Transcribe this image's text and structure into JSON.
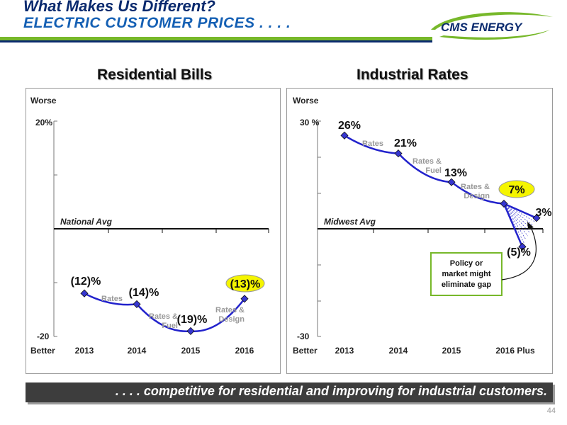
{
  "header": {
    "title": "What Makes Us Different?",
    "subtitle": "ELECTRIC CUSTOMER PRICES . . . .",
    "logo_text": "CMS ENERGY"
  },
  "colors": {
    "line": "#2222cc",
    "highlight": "#f5f500",
    "navy": "#0a2a6e",
    "green": "#77b82a"
  },
  "footer": {
    "text": ". . . . competitive for residential and improving for industrial customers.",
    "page_number": "44"
  },
  "chart_data": [
    {
      "type": "line",
      "title": "Residential Bills",
      "categories": [
        "2013",
        "2014",
        "2015",
        "2016"
      ],
      "series": [
        {
          "values": [
            -12,
            -14,
            -19,
            -13
          ]
        }
      ],
      "value_labels": [
        "(12)%",
        "(14)%",
        "(19)%",
        "(13)%"
      ],
      "highlighted_label_index": 3,
      "segment_labels": [
        [
          "Rates"
        ],
        [
          "Rates &",
          "Fuel"
        ],
        [
          "Rates &",
          "Design"
        ]
      ],
      "ylim": [
        -20,
        20
      ],
      "ytick_labels": [
        "20%",
        "-20"
      ],
      "top_label": "Worse",
      "bottom_label": "Better",
      "reference_line": {
        "label": "National Avg",
        "value": 0
      }
    },
    {
      "type": "line",
      "title": "Industrial Rates",
      "categories": [
        "2013",
        "2014",
        "2015",
        "2016 Plus"
      ],
      "series": [
        {
          "values": [
            26,
            21,
            13,
            7
          ]
        }
      ],
      "branch_points": [
        3,
        -5
      ],
      "value_labels": [
        "26%",
        "21%",
        "13%",
        "7%"
      ],
      "branch_labels": [
        "3%",
        "(5)%"
      ],
      "highlighted_label_index": 3,
      "segment_labels": [
        [
          "Rates"
        ],
        [
          "Rates &",
          "Fuel"
        ],
        [
          "Rates &",
          "Design"
        ]
      ],
      "ylim": [
        -30,
        30
      ],
      "ytick_labels": [
        "30 %",
        "-30"
      ],
      "top_label": "Worse",
      "bottom_label": "Better",
      "reference_line": {
        "label": "Midwest Avg",
        "value": 0
      },
      "callout": [
        "Policy or",
        "market might",
        "eliminate gap"
      ]
    }
  ]
}
